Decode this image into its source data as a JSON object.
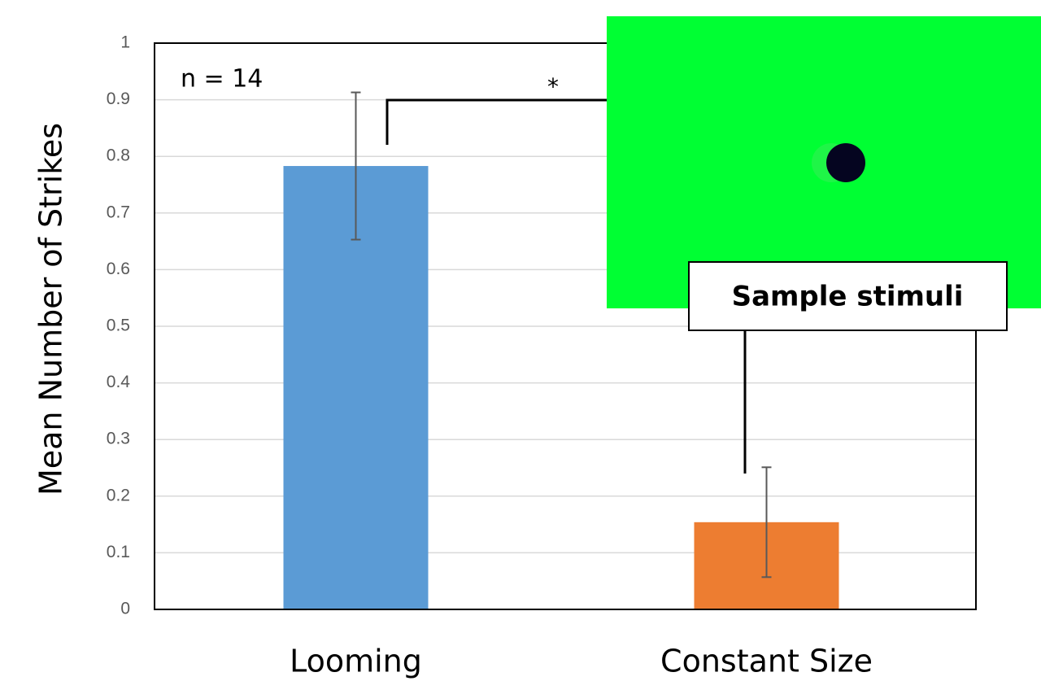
{
  "chart_data": {
    "type": "bar",
    "y_label": "Mean Number of Strikes",
    "categories": [
      "Looming",
      "Constant Size"
    ],
    "values": [
      0.783,
      0.154
    ],
    "errors": [
      0.13,
      0.097
    ],
    "colors": [
      "#5b9bd5",
      "#ed7d31"
    ],
    "ylim": [
      0,
      1
    ],
    "yticks": [
      0,
      0.1,
      0.2,
      0.3,
      0.4,
      0.5,
      0.6,
      0.7,
      0.8,
      0.9,
      1
    ],
    "grid": true,
    "annotations": {
      "n": "n = 14",
      "significance": "*",
      "inset": "Sample stimuli"
    }
  }
}
